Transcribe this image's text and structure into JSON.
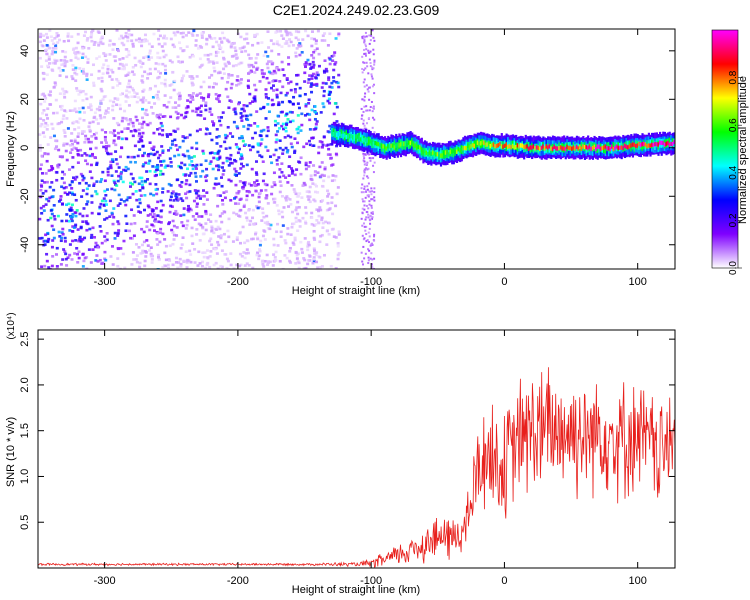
{
  "figure": {
    "title": "C2E1.2024.249.02.23.G09"
  },
  "chart_data": [
    {
      "type": "heatmap",
      "xlabel": "Height of straight line (km)",
      "ylabel": "Frequency (Hz)",
      "xlim": [
        -350,
        128
      ],
      "ylim": [
        -50,
        49
      ],
      "x_ticks": [
        -300,
        -200,
        -100,
        0,
        100
      ],
      "y_ticks": [
        -40,
        -20,
        0,
        20,
        40
      ],
      "x_tick_labels": [
        "-300",
        "-200",
        "-100",
        "0",
        "100"
      ],
      "y_tick_labels": [
        "-40",
        "-20",
        "0",
        "20",
        "40"
      ],
      "colorbar": {
        "label": "Normalized spectral amplitude",
        "range": [
          0,
          1
        ],
        "ticks": [
          0,
          0.2,
          0.4,
          0.6,
          0.8
        ],
        "tick_labels": [
          "0.0",
          "0.2",
          "0.4",
          "0.6",
          "0.8"
        ],
        "colormap": [
          "#ffffff",
          "#7f00ff",
          "#0000ff",
          "#00ffff",
          "#00ff00",
          "#ffff00",
          "#ff0000",
          "#ff00ff"
        ]
      },
      "tracked_signal": {
        "x": [
          -130,
          -120,
          -110,
          -100,
          -90,
          -80,
          -70,
          -60,
          -50,
          -40,
          -30,
          -20,
          -10,
          0,
          20,
          40,
          60,
          80,
          100,
          128
        ],
        "frequency": [
          6,
          5,
          4,
          2,
          0,
          1,
          2,
          -2,
          -3,
          -2,
          0,
          2,
          1,
          1,
          0,
          0,
          0,
          0,
          1,
          2
        ],
        "amplitude": [
          0.45,
          0.5,
          0.5,
          0.55,
          0.6,
          0.55,
          0.6,
          0.55,
          0.6,
          0.6,
          0.65,
          0.65,
          0.7,
          0.75,
          0.8,
          0.85,
          0.85,
          0.9,
          0.9,
          0.95
        ]
      }
    },
    {
      "type": "line",
      "xlabel": "Height of straight line (km)",
      "ylabel": "SNR (10 * v/v)",
      "y_multiplier": "(x10⁴)",
      "xlim": [
        -350,
        128
      ],
      "ylim": [
        0,
        2.6
      ],
      "x_ticks": [
        -300,
        -200,
        -100,
        0,
        100
      ],
      "y_ticks": [
        0.5,
        1.0,
        1.5,
        2.0,
        2.5
      ],
      "x_tick_labels": [
        "-300",
        "-200",
        "-100",
        "0",
        "100"
      ],
      "y_tick_labels": [
        "0.5",
        "1.0",
        "1.5",
        "2.0",
        "2.5"
      ],
      "series": [
        {
          "color": "#e8201c",
          "x": [
            -350,
            -300,
            -250,
            -200,
            -150,
            -110,
            -100,
            -90,
            -80,
            -70,
            -60,
            -50,
            -40,
            -30,
            -25,
            -20,
            -15,
            -10,
            -5,
            0,
            10,
            20,
            30,
            40,
            50,
            60,
            70,
            80,
            90,
            100,
            110,
            120,
            128
          ],
          "mean": [
            0.04,
            0.04,
            0.04,
            0.04,
            0.04,
            0.04,
            0.05,
            0.09,
            0.14,
            0.2,
            0.27,
            0.33,
            0.33,
            0.4,
            0.72,
            1.05,
            1.22,
            1.25,
            1.12,
            1.08,
            1.4,
            1.5,
            1.48,
            1.52,
            1.5,
            1.45,
            1.52,
            1.45,
            1.4,
            1.45,
            1.35,
            1.25,
            1.5
          ],
          "spread": [
            0.01,
            0.01,
            0.01,
            0.01,
            0.01,
            0.02,
            0.04,
            0.07,
            0.1,
            0.14,
            0.18,
            0.2,
            0.22,
            0.2,
            0.35,
            0.45,
            0.5,
            0.55,
            0.5,
            0.5,
            0.55,
            0.6,
            0.6,
            0.6,
            0.6,
            0.55,
            0.55,
            0.55,
            0.55,
            0.5,
            0.5,
            0.5,
            0.5
          ]
        }
      ]
    }
  ]
}
